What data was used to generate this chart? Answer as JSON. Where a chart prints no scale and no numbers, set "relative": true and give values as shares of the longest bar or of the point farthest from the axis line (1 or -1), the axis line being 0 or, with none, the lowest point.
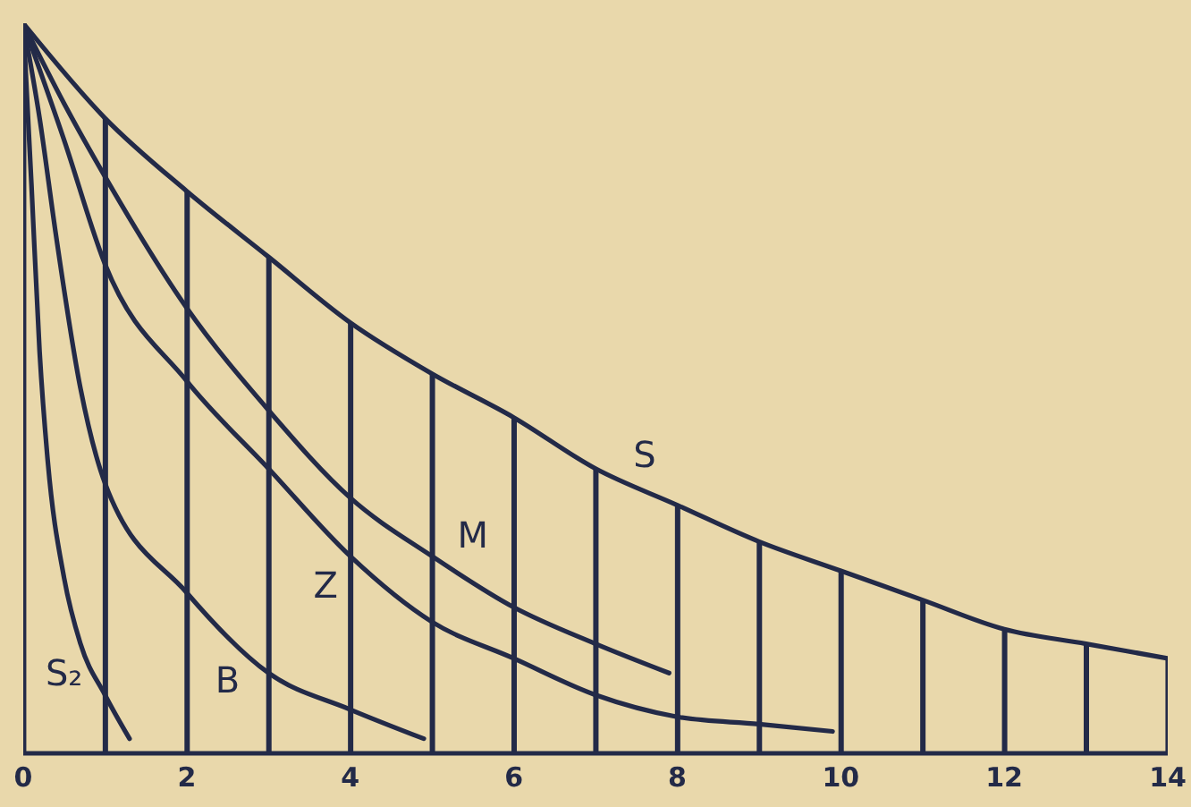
{
  "chart_data": {
    "type": "line",
    "relative": true,
    "xlim": [
      0,
      14
    ],
    "xticks": [
      0,
      2,
      4,
      6,
      8,
      10,
      12,
      14
    ],
    "series": [
      {
        "name": "S",
        "color": "#232a48",
        "x": [
          0,
          1,
          2,
          3,
          4,
          5,
          6,
          7,
          8,
          9,
          10,
          11,
          12,
          13,
          14
        ],
        "values": [
          1,
          0.87,
          0.77,
          0.68,
          0.59,
          0.52,
          0.46,
          0.39,
          0.34,
          0.29,
          0.25,
          0.21,
          0.17,
          0.15,
          0.13
        ]
      },
      {
        "name": "M",
        "color": "#232a48",
        "x": [
          0,
          0.5,
          1,
          2,
          3,
          4,
          5,
          6,
          7,
          7.9
        ],
        "values": [
          1,
          0.89,
          0.79,
          0.61,
          0.47,
          0.35,
          0.27,
          0.2,
          0.15,
          0.11
        ]
      },
      {
        "name": "Z",
        "color": "#232a48",
        "x": [
          0,
          0.5,
          1,
          2,
          3,
          4,
          5,
          6,
          7,
          8,
          9,
          9.9
        ],
        "values": [
          1,
          0.84,
          0.67,
          0.51,
          0.39,
          0.27,
          0.18,
          0.13,
          0.08,
          0.05,
          0.04,
          0.03
        ]
      },
      {
        "name": "B",
        "color": "#232a48",
        "x": [
          0,
          0.2,
          0.4,
          0.7,
          1,
          2,
          3,
          4,
          4.9
        ],
        "values": [
          1,
          0.87,
          0.71,
          0.5,
          0.37,
          0.22,
          0.11,
          0.06,
          0.02
        ]
      },
      {
        "name": "S₂",
        "color": "#232a48",
        "x": [
          0,
          0.1,
          0.2,
          0.3,
          0.5,
          0.7,
          1,
          1.3
        ],
        "values": [
          1,
          0.78,
          0.55,
          0.4,
          0.24,
          0.15,
          0.08,
          0.02
        ]
      },
      {
        "type": "bar",
        "color": "#232a48",
        "x": [
          0,
          1,
          2,
          3,
          4,
          5,
          6,
          7,
          8,
          9,
          10,
          11,
          12,
          13,
          14
        ],
        "values": [
          1,
          0.87,
          0.77,
          0.68,
          0.59,
          0.52,
          0.46,
          0.39,
          0.34,
          0.29,
          0.25,
          0.21,
          0.17,
          0.15,
          0.13
        ]
      }
    ]
  }
}
